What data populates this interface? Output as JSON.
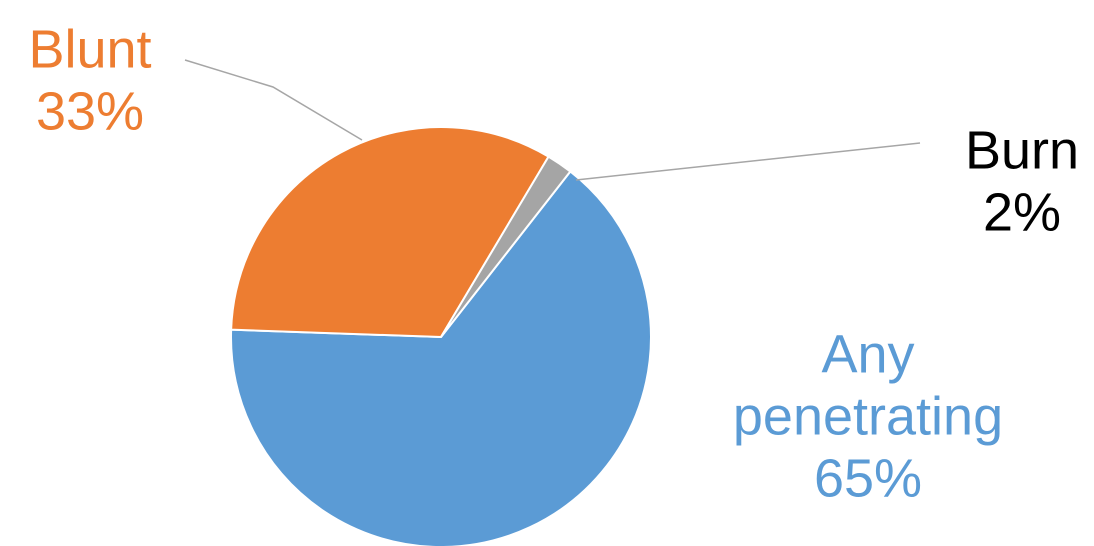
{
  "chart_data": {
    "type": "pie",
    "title": "",
    "slices": [
      {
        "name": "Any penetrating",
        "label_lines": [
          "Any",
          "penetrating"
        ],
        "value": 65,
        "value_label": "65%",
        "color": "#5b9bd5"
      },
      {
        "name": "Blunt",
        "label_lines": [
          "Blunt"
        ],
        "value": 33,
        "value_label": "33%",
        "color": "#ed7d31"
      },
      {
        "name": "Burn",
        "label_lines": [
          "Burn"
        ],
        "value": 2,
        "value_label": "2%",
        "color": "#a5a5a5"
      }
    ],
    "label_colors": {
      "Any penetrating": "#5b9bd5",
      "Blunt": "#ed7d31",
      "Burn": "#000000"
    },
    "leader_line_color": "#a6a6a6",
    "legend": "none"
  }
}
